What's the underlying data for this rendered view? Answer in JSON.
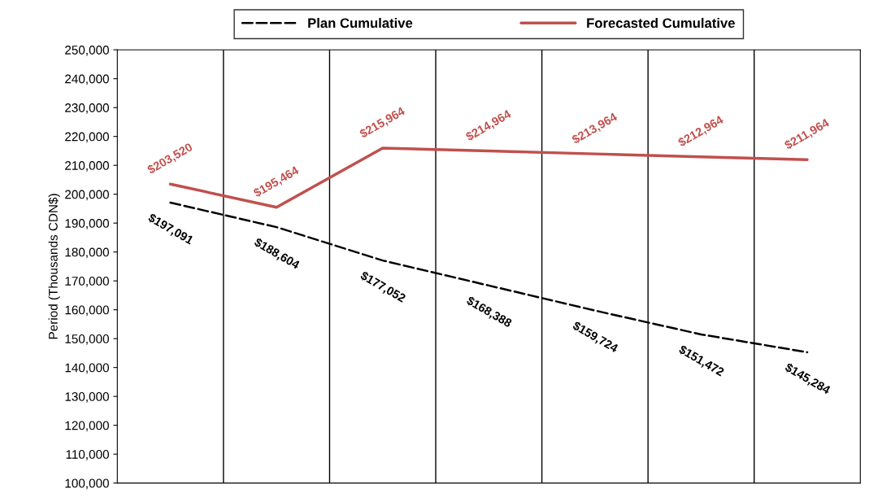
{
  "chart_data": {
    "type": "line",
    "ylabel": "Period (Thousands CDN$)",
    "categories": [
      null,
      null,
      null,
      null,
      null,
      null,
      null
    ],
    "series": [
      {
        "name": "Plan Cumulative",
        "color": "#000000",
        "line_style": "dashed",
        "values": [
          197091,
          188604,
          177052,
          168388,
          159724,
          151472,
          145284
        ],
        "value_labels": [
          "$197,091",
          "$188,604",
          "$177,052",
          "$168,388",
          "$159,724",
          "$151,472",
          "$145,284"
        ]
      },
      {
        "name": "Forecasted Cumulative",
        "color": "#c0504d",
        "line_style": "solid",
        "values": [
          203520,
          195464,
          215964,
          214964,
          213964,
          212964,
          211964
        ],
        "value_labels": [
          "$203,520",
          "$195,464",
          "$215,964",
          "$214,964",
          "$213,964",
          "$212,964",
          "$211,964"
        ]
      }
    ],
    "ylim": [
      100000,
      250000
    ],
    "yticks": [
      {
        "value": 100000,
        "label": "100,000"
      },
      {
        "value": 110000,
        "label": "110,000"
      },
      {
        "value": 120000,
        "label": "120,000"
      },
      {
        "value": 130000,
        "label": "130,000"
      },
      {
        "value": 140000,
        "label": "140,000"
      },
      {
        "value": 150000,
        "label": "150,000"
      },
      {
        "value": 160000,
        "label": "160,000"
      },
      {
        "value": 170000,
        "label": "170,000"
      },
      {
        "value": 180000,
        "label": "180,000"
      },
      {
        "value": 190000,
        "label": "190,000"
      },
      {
        "value": 200000,
        "label": "200,000"
      },
      {
        "value": 210000,
        "label": "210,000"
      },
      {
        "value": 220000,
        "label": "220,000"
      },
      {
        "value": 230000,
        "label": "230,000"
      },
      {
        "value": 240000,
        "label": "240,000"
      },
      {
        "value": 250000,
        "label": "250,000"
      }
    ],
    "grid": "x",
    "legend": "top",
    "marker": "none",
    "tick_labels": "y"
  }
}
